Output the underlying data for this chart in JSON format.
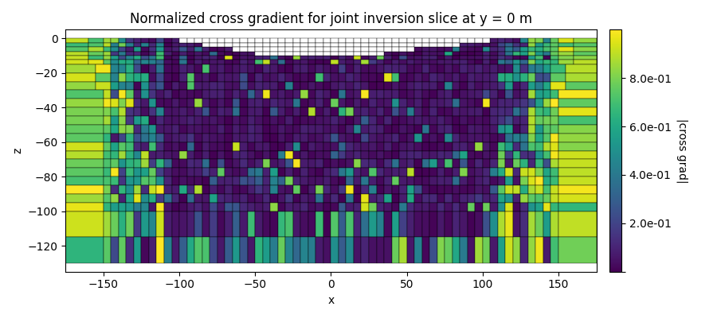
{
  "title": "Normalized cross gradient for joint inversion slice at y = 0 m",
  "xlabel": "x",
  "ylabel": "z",
  "xlim": [
    -175,
    175
  ],
  "ylim": [
    -135,
    5
  ],
  "colorbar_label": "|cross grad|",
  "vmin": 0.0,
  "vmax": 1.0,
  "cmap": "viridis",
  "xticks": [
    -150,
    -100,
    -50,
    0,
    50,
    100,
    150
  ],
  "yticks": [
    0,
    -20,
    -40,
    -60,
    -80,
    -100,
    -120
  ],
  "figsize": [
    9.0,
    4.0
  ],
  "dpi": 100,
  "seed": 42
}
